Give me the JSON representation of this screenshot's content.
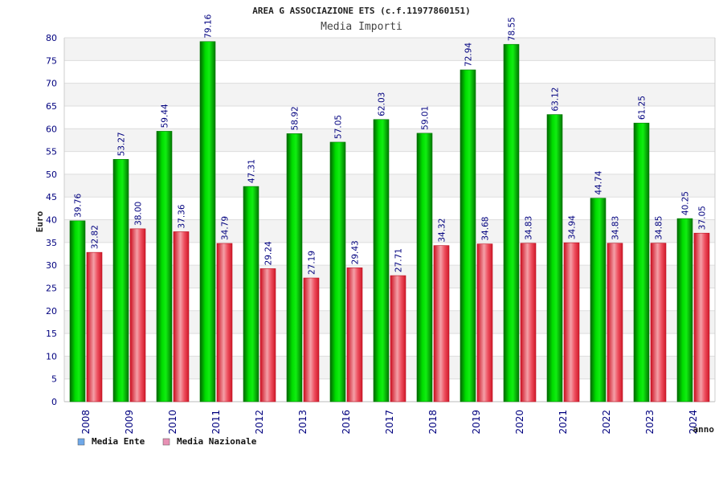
{
  "chart_data": {
    "type": "bar",
    "title": "AREA G ASSOCIAZIONE ETS (c.f.11977860151)",
    "subtitle": "Media Importi",
    "xlabel": "anno",
    "ylabel": "Euro",
    "ylim": [
      0,
      80
    ],
    "yticks": [
      "0",
      "5",
      "10",
      "15",
      "20",
      "25",
      "30",
      "35",
      "40",
      "45",
      "50",
      "55",
      "60",
      "65",
      "70",
      "75",
      "80"
    ],
    "grid": true,
    "legend_position": "bottom-left",
    "categories": [
      "2008",
      "2009",
      "2010",
      "2011",
      "2012",
      "2013",
      "2016",
      "2017",
      "2018",
      "2019",
      "2020",
      "2021",
      "2022",
      "2023",
      "2024"
    ],
    "series": [
      {
        "name": "Media Ente",
        "color": "#00cc00",
        "legend_color": "#6fa8e8",
        "values": [
          39.76,
          53.27,
          59.44,
          79.16,
          47.31,
          58.92,
          57.05,
          62.03,
          59.01,
          72.94,
          78.55,
          63.12,
          44.74,
          61.25,
          40.25
        ],
        "labels": [
          "39.76",
          "53.27",
          "59.44",
          "79.16",
          "47.31",
          "58.92",
          "57.05",
          "62.03",
          "59.01",
          "72.94",
          "78.55",
          "63.12",
          "44.74",
          "61.25",
          "40.25"
        ]
      },
      {
        "name": "Media Nazionale",
        "color": "#e8303c",
        "legend_color": "#e890b4",
        "values": [
          32.82,
          38.0,
          37.36,
          34.79,
          29.24,
          27.19,
          29.43,
          27.71,
          34.32,
          34.68,
          34.83,
          34.94,
          34.83,
          34.85,
          37.05
        ],
        "labels": [
          "32.82",
          "38.00",
          "37.36",
          "34.79",
          "29.24",
          "27.19",
          "29.43",
          "27.71",
          "34.32",
          "34.68",
          "34.83",
          "34.94",
          "34.83",
          "34.85",
          "37.05"
        ]
      }
    ]
  }
}
